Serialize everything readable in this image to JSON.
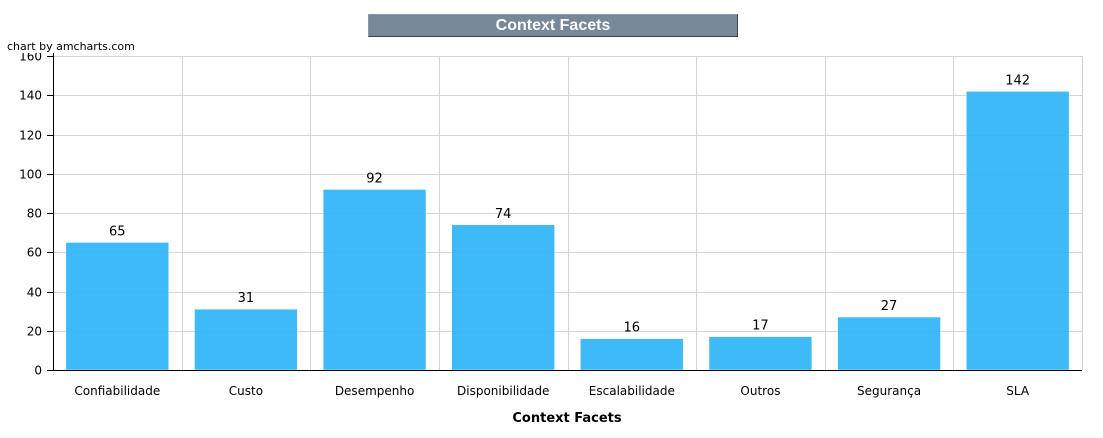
{
  "chart_data": {
    "type": "bar",
    "title": "Context Facets",
    "credit": "chart by amcharts.com",
    "xlabel": "Context Facets",
    "ylabel": "",
    "categories": [
      "Confiabilidade",
      "Custo",
      "Desempenho",
      "Disponibilidade",
      "Escalabilidade",
      "Outros",
      "Segurança",
      "SLA"
    ],
    "values": [
      65,
      31,
      92,
      74,
      16,
      17,
      27,
      142
    ],
    "ylim": [
      0,
      160
    ],
    "yticks": [
      0,
      20,
      40,
      60,
      80,
      100,
      120,
      140,
      160
    ],
    "grid": true,
    "bar_color": "#2db4f6",
    "title_bg_color": "#778899"
  }
}
